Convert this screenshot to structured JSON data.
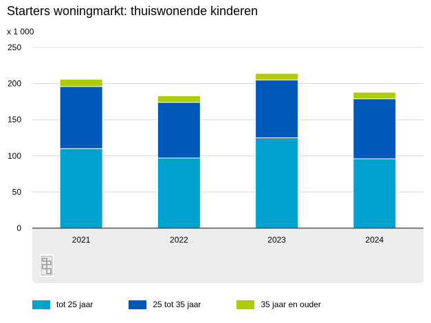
{
  "chart_data": {
    "type": "bar",
    "stacked": true,
    "title": "Starters woningmarkt: thuiswonende kinderen",
    "unit_label": "x 1 000",
    "xlabel": "",
    "ylabel": "",
    "ylim": [
      0,
      250
    ],
    "yticks": [
      "0",
      "50",
      "100",
      "150",
      "200",
      "250"
    ],
    "grid": true,
    "legend_position": "bottom",
    "categories": [
      "2021",
      "2022",
      "2023",
      "2024"
    ],
    "series": [
      {
        "name": "tot 25 jaar",
        "color": "#00a1cd",
        "values": [
          110,
          97,
          125,
          96
        ]
      },
      {
        "name": "25 tot 35 jaar",
        "color": "#0058b8",
        "values": [
          86,
          77,
          80,
          83
        ]
      },
      {
        "name": "35 jaar en ouder",
        "color": "#afcb05",
        "values": [
          10,
          9,
          9,
          9
        ]
      }
    ]
  },
  "logo_icon": "cbs-logo-icon"
}
